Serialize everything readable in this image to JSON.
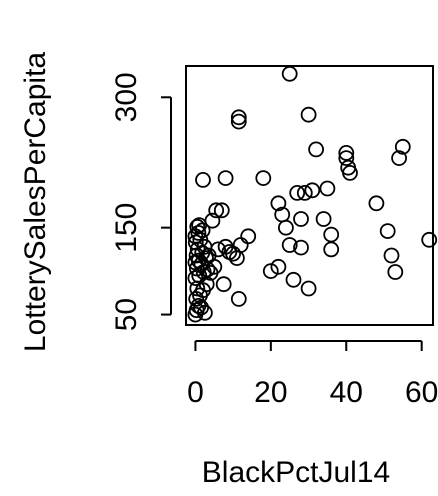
{
  "chart_data": {
    "type": "scatter",
    "title": "",
    "xlabel": "BlackPctJul14",
    "ylabel": "LotterySalesPerCapita",
    "xlim": [
      -2.5,
      63
    ],
    "ylim": [
      38,
      336
    ],
    "x_ticks": [
      0,
      20,
      40,
      60
    ],
    "y_ticks": [
      50,
      150,
      300
    ],
    "x_tick_labels": [
      "0",
      "20",
      "40",
      "60"
    ],
    "y_tick_labels": [
      "50",
      "150",
      "300"
    ],
    "grid": false,
    "legend": "none",
    "marker": "open-circle",
    "colors": {
      "point": "#000000",
      "axis": "#000000",
      "background": "#ffffff"
    },
    "points": [
      {
        "x": 0.0,
        "y": 50
      },
      {
        "x": 0.3,
        "y": 55
      },
      {
        "x": 0.8,
        "y": 60
      },
      {
        "x": 1.5,
        "y": 58
      },
      {
        "x": 2.5,
        "y": 52
      },
      {
        "x": 0.2,
        "y": 68
      },
      {
        "x": 1.2,
        "y": 72
      },
      {
        "x": 0.5,
        "y": 80
      },
      {
        "x": 2.0,
        "y": 78
      },
      {
        "x": 3.0,
        "y": 85
      },
      {
        "x": 0.0,
        "y": 92
      },
      {
        "x": 1.0,
        "y": 95
      },
      {
        "x": 2.2,
        "y": 99
      },
      {
        "x": 3.2,
        "y": 102
      },
      {
        "x": 0.4,
        "y": 103
      },
      {
        "x": 1.6,
        "y": 108
      },
      {
        "x": 0.0,
        "y": 110
      },
      {
        "x": 0.9,
        "y": 112
      },
      {
        "x": 2.8,
        "y": 115
      },
      {
        "x": 0.3,
        "y": 118
      },
      {
        "x": 1.8,
        "y": 121
      },
      {
        "x": 0.6,
        "y": 125
      },
      {
        "x": 2.4,
        "y": 128
      },
      {
        "x": 0.1,
        "y": 133
      },
      {
        "x": 1.3,
        "y": 136
      },
      {
        "x": 0.0,
        "y": 140
      },
      {
        "x": 0.8,
        "y": 144
      },
      {
        "x": 1.9,
        "y": 147
      },
      {
        "x": 0.5,
        "y": 151
      },
      {
        "x": 1.0,
        "y": 153
      },
      {
        "x": 4.0,
        "y": 98
      },
      {
        "x": 5.0,
        "y": 105
      },
      {
        "x": 3.5,
        "y": 118
      },
      {
        "x": 6.0,
        "y": 125
      },
      {
        "x": 4.5,
        "y": 158
      },
      {
        "x": 5.5,
        "y": 170
      },
      {
        "x": 7.0,
        "y": 170
      },
      {
        "x": 8.0,
        "y": 128
      },
      {
        "x": 7.5,
        "y": 85
      },
      {
        "x": 9.0,
        "y": 122
      },
      {
        "x": 10.0,
        "y": 120
      },
      {
        "x": 11.0,
        "y": 115
      },
      {
        "x": 12.0,
        "y": 130
      },
      {
        "x": 14.0,
        "y": 140
      },
      {
        "x": 11.5,
        "y": 68
      },
      {
        "x": 2.0,
        "y": 205
      },
      {
        "x": 8.0,
        "y": 207
      },
      {
        "x": 11.5,
        "y": 272
      },
      {
        "x": 11.5,
        "y": 277
      },
      {
        "x": 18.0,
        "y": 207
      },
      {
        "x": 20.0,
        "y": 100
      },
      {
        "x": 22.0,
        "y": 105
      },
      {
        "x": 22.0,
        "y": 178
      },
      {
        "x": 23.0,
        "y": 165
      },
      {
        "x": 24.0,
        "y": 150
      },
      {
        "x": 25.0,
        "y": 130
      },
      {
        "x": 25.0,
        "y": 327
      },
      {
        "x": 26.0,
        "y": 90
      },
      {
        "x": 27.0,
        "y": 190
      },
      {
        "x": 28.0,
        "y": 160
      },
      {
        "x": 28.0,
        "y": 127
      },
      {
        "x": 29.0,
        "y": 190
      },
      {
        "x": 30.0,
        "y": 80
      },
      {
        "x": 30.0,
        "y": 280
      },
      {
        "x": 31.0,
        "y": 193
      },
      {
        "x": 32.0,
        "y": 240
      },
      {
        "x": 34.0,
        "y": 160
      },
      {
        "x": 35.0,
        "y": 195
      },
      {
        "x": 36.0,
        "y": 142
      },
      {
        "x": 36.0,
        "y": 125
      },
      {
        "x": 40.0,
        "y": 230
      },
      {
        "x": 40.0,
        "y": 236
      },
      {
        "x": 40.5,
        "y": 219
      },
      {
        "x": 41.0,
        "y": 213
      },
      {
        "x": 48.0,
        "y": 178
      },
      {
        "x": 51.0,
        "y": 146
      },
      {
        "x": 52.0,
        "y": 118
      },
      {
        "x": 53.0,
        "y": 99
      },
      {
        "x": 54.0,
        "y": 230
      },
      {
        "x": 55.0,
        "y": 243
      },
      {
        "x": 62.0,
        "y": 136
      }
    ]
  }
}
